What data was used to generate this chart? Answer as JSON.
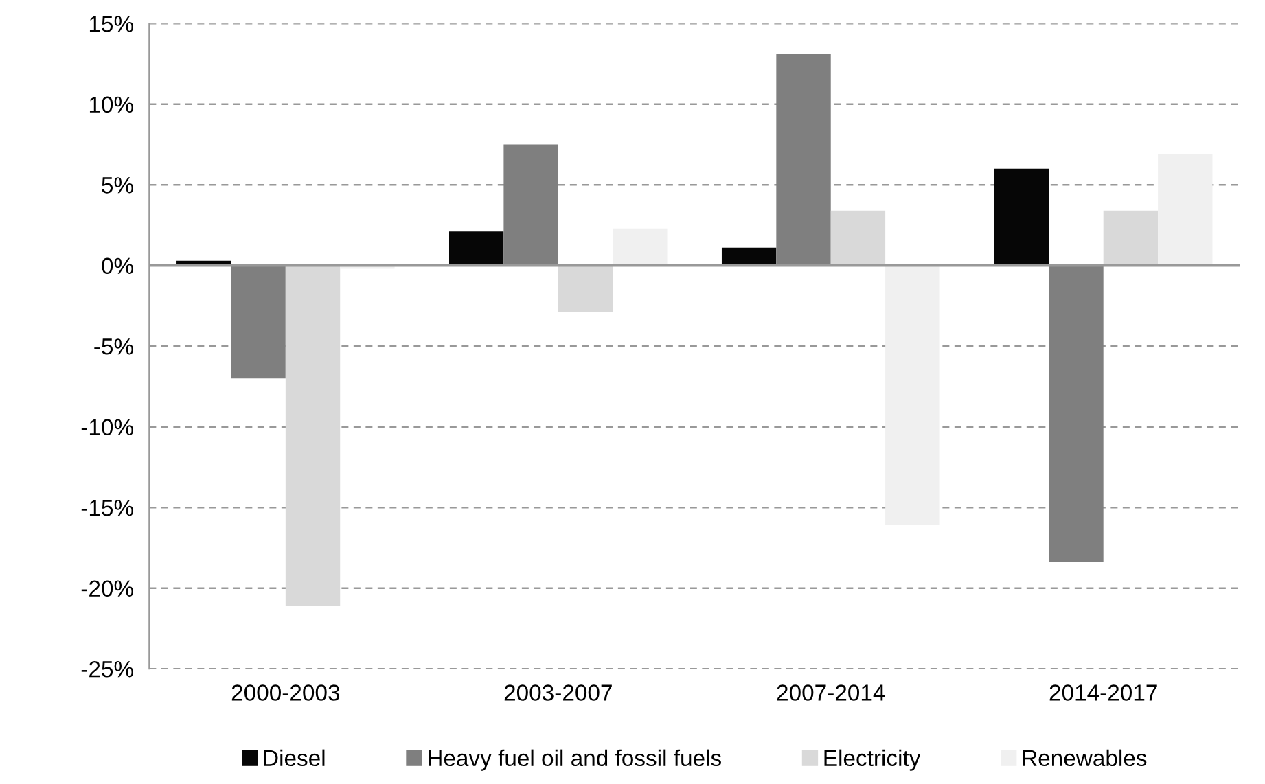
{
  "chart_data": {
    "type": "bar",
    "categories": [
      "2000-2003",
      "2003-2007",
      "2007-2014",
      "2014-2017"
    ],
    "series": [
      {
        "name": "Diesel",
        "color": "#060606",
        "values": [
          0.3,
          2.1,
          1.1,
          6.0
        ]
      },
      {
        "name": "Heavy fuel oil and fossil fuels",
        "color": "#7f7f7f",
        "values": [
          -7.0,
          7.5,
          13.1,
          -18.4
        ]
      },
      {
        "name": "Electricity",
        "color": "#d9d9d9",
        "values": [
          -21.1,
          -2.9,
          3.4,
          3.4
        ]
      },
      {
        "name": "Renewables",
        "color": "#f0f0f0",
        "values": [
          -0.2,
          2.3,
          -16.1,
          6.9
        ]
      }
    ],
    "ylim": [
      -25,
      15
    ],
    "yticks": [
      {
        "value": -25,
        "label": "-25%"
      },
      {
        "value": -20,
        "label": "-20%"
      },
      {
        "value": -15,
        "label": "-15%"
      },
      {
        "value": -10,
        "label": "-10%"
      },
      {
        "value": -5,
        "label": "-5%"
      },
      {
        "value": 0,
        "label": "0%"
      },
      {
        "value": 5,
        "label": "5%"
      },
      {
        "value": 10,
        "label": "10%"
      },
      {
        "value": 15,
        "label": "15%"
      }
    ],
    "grid": "y",
    "legend": "bottom"
  }
}
